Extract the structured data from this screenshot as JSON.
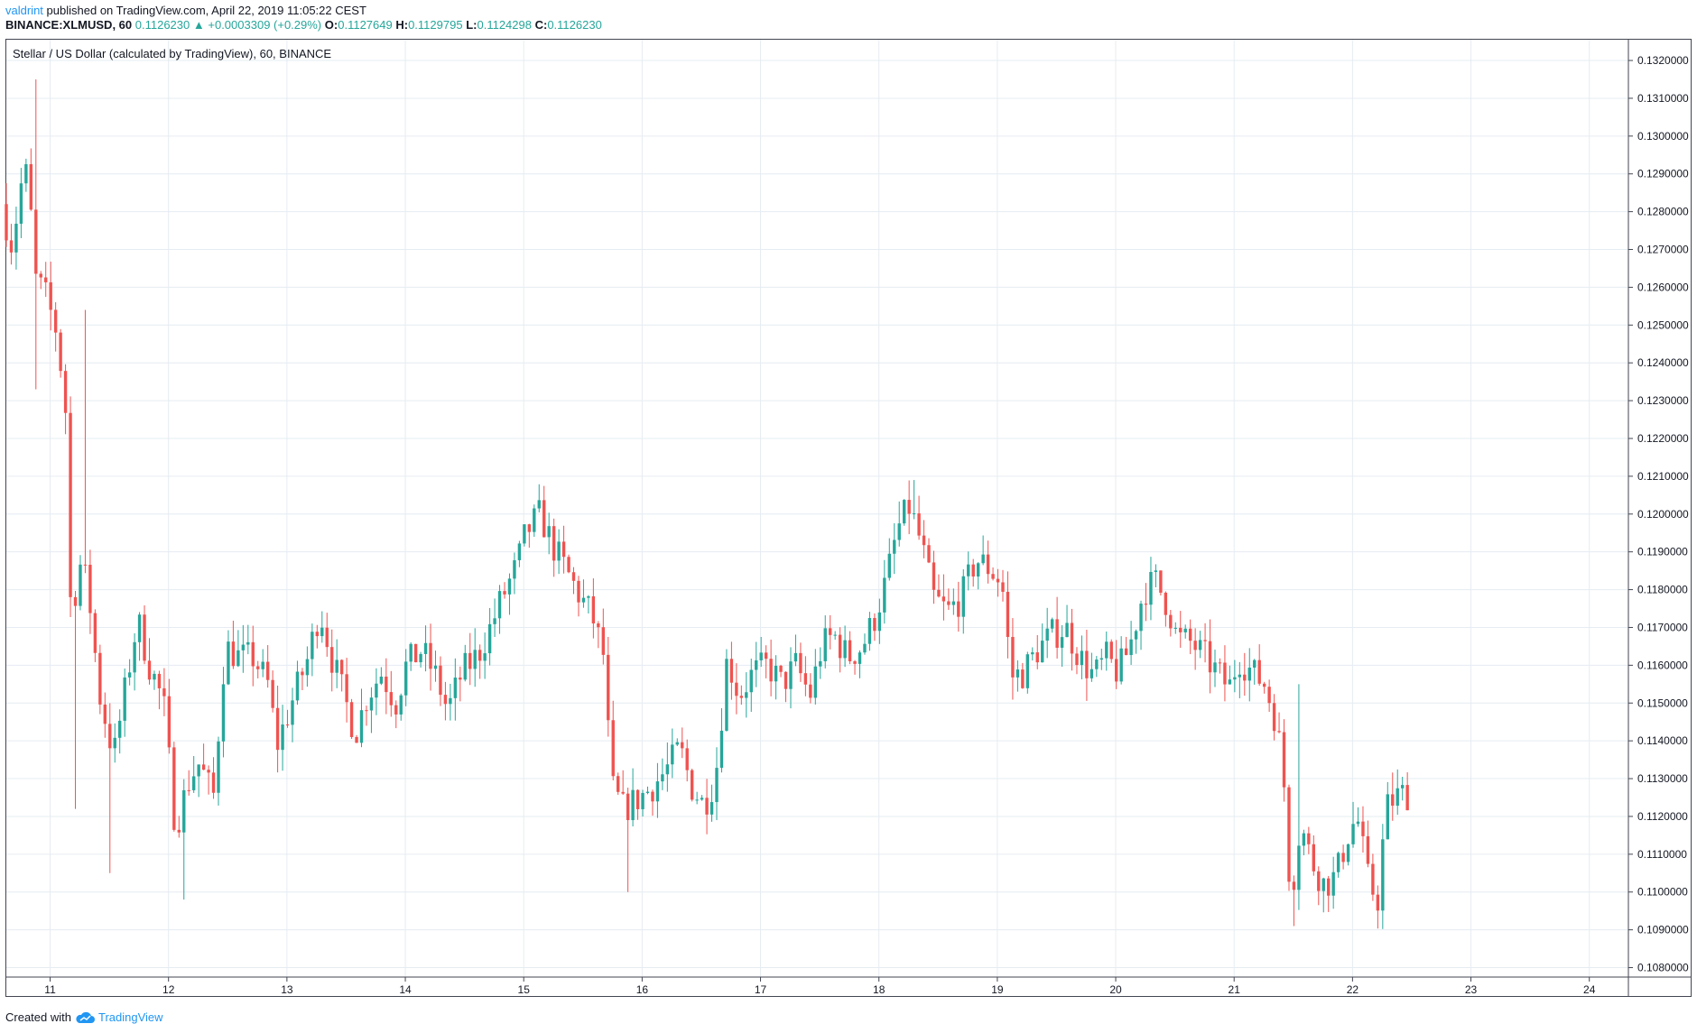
{
  "header": {
    "author": "valdrint",
    "published_text": "published on TradingView.com, April 22, 2019 11:05:22 CEST",
    "symbol_interval": "BINANCE:XLMUSD, 60",
    "last": "0.1126230",
    "change": "+0.0003309 (+0.29%)",
    "open_label": "O:",
    "open": "0.1127649",
    "high_label": "H:",
    "high": "0.1129795",
    "low_label": "L:",
    "low": "0.1124298",
    "close_label": "C:",
    "close": "0.1126230"
  },
  "footer": {
    "created_with": "Created with",
    "brand": "TradingView"
  },
  "colors": {
    "up": "#26a69a",
    "down": "#ef5350",
    "grid": "#e6ecf2",
    "axis_text": "#131722",
    "border": "#434651"
  },
  "chart_data": {
    "type": "candlestick",
    "title": "Stellar / US Dollar (calculated by TradingView), 60, BINANCE",
    "x_ticks": [
      "11",
      "12",
      "13",
      "14",
      "15",
      "16",
      "17",
      "18",
      "19",
      "20",
      "21",
      "22",
      "23",
      "24"
    ],
    "x_range_days": [
      10.63,
      24.33
    ],
    "y_range": [
      0.10775,
      0.13255
    ],
    "y_ticks": [
      0.108,
      0.109,
      0.11,
      0.111,
      0.112,
      0.113,
      0.114,
      0.115,
      0.116,
      0.117,
      0.118,
      0.119,
      0.12,
      0.121,
      0.122,
      0.123,
      0.124,
      0.125,
      0.126,
      0.127,
      0.128,
      0.129,
      0.13,
      0.131,
      0.132
    ],
    "y_tick_labels": [
      "0.1080000",
      "0.1090000",
      "0.1100000",
      "0.1110000",
      "0.1120000",
      "0.1130000",
      "0.1140000",
      "0.1150000",
      "0.1160000",
      "0.1170000",
      "0.1180000",
      "0.1190000",
      "0.1200000",
      "0.1210000",
      "0.1220000",
      "0.1230000",
      "0.1240000",
      "0.1250000",
      "0.1260000",
      "0.1270000",
      "0.1280000",
      "0.1290000",
      "0.1300000",
      "0.1310000",
      "0.1320000"
    ],
    "candle_interval_hours": 1,
    "path_key_points": [
      [
        10.63,
        0.1282
      ],
      [
        10.72,
        0.1271
      ],
      [
        10.82,
        0.1292
      ],
      [
        10.86,
        0.1287
      ],
      [
        10.92,
        0.1262
      ],
      [
        11.0,
        0.1258
      ],
      [
        11.1,
        0.1248
      ],
      [
        11.18,
        0.1225
      ],
      [
        11.22,
        0.1168
      ],
      [
        11.28,
        0.1188
      ],
      [
        11.36,
        0.1181
      ],
      [
        11.46,
        0.1152
      ],
      [
        11.58,
        0.1136
      ],
      [
        11.7,
        0.1158
      ],
      [
        11.78,
        0.1172
      ],
      [
        11.88,
        0.116
      ],
      [
        12.0,
        0.115
      ],
      [
        12.1,
        0.1117
      ],
      [
        12.22,
        0.113
      ],
      [
        12.3,
        0.1134
      ],
      [
        12.42,
        0.1125
      ],
      [
        12.52,
        0.1165
      ],
      [
        12.64,
        0.1162
      ],
      [
        12.76,
        0.1162
      ],
      [
        12.88,
        0.1155
      ],
      [
        12.96,
        0.1139
      ],
      [
        13.08,
        0.115
      ],
      [
        13.22,
        0.1162
      ],
      [
        13.32,
        0.1175
      ],
      [
        13.42,
        0.1162
      ],
      [
        13.54,
        0.115
      ],
      [
        13.62,
        0.1142
      ],
      [
        13.72,
        0.1152
      ],
      [
        13.84,
        0.1158
      ],
      [
        13.96,
        0.115
      ],
      [
        14.05,
        0.116
      ],
      [
        14.18,
        0.1164
      ],
      [
        14.3,
        0.1157
      ],
      [
        14.4,
        0.1148
      ],
      [
        14.52,
        0.1158
      ],
      [
        14.66,
        0.1163
      ],
      [
        14.76,
        0.117
      ],
      [
        14.86,
        0.1178
      ],
      [
        14.98,
        0.1186
      ],
      [
        15.06,
        0.1195
      ],
      [
        15.18,
        0.12
      ],
      [
        15.28,
        0.1192
      ],
      [
        15.4,
        0.1185
      ],
      [
        15.52,
        0.1178
      ],
      [
        15.62,
        0.1173
      ],
      [
        15.72,
        0.1162
      ],
      [
        15.78,
        0.1128
      ],
      [
        15.88,
        0.1122
      ],
      [
        15.98,
        0.1124
      ],
      [
        16.1,
        0.1127
      ],
      [
        16.24,
        0.1132
      ],
      [
        16.36,
        0.1138
      ],
      [
        16.46,
        0.1128
      ],
      [
        16.56,
        0.1123
      ],
      [
        16.66,
        0.113
      ],
      [
        16.76,
        0.1162
      ],
      [
        16.86,
        0.1152
      ],
      [
        16.98,
        0.1158
      ],
      [
        17.1,
        0.116
      ],
      [
        17.22,
        0.1155
      ],
      [
        17.34,
        0.116
      ],
      [
        17.46,
        0.1152
      ],
      [
        17.56,
        0.1165
      ],
      [
        17.66,
        0.1168
      ],
      [
        17.78,
        0.1162
      ],
      [
        17.9,
        0.1165
      ],
      [
        18.0,
        0.1172
      ],
      [
        18.1,
        0.1182
      ],
      [
        18.2,
        0.1196
      ],
      [
        18.3,
        0.1202
      ],
      [
        18.4,
        0.1192
      ],
      [
        18.5,
        0.1178
      ],
      [
        18.62,
        0.1174
      ],
      [
        18.74,
        0.1178
      ],
      [
        18.86,
        0.1188
      ],
      [
        18.96,
        0.1186
      ],
      [
        19.08,
        0.1182
      ],
      [
        19.16,
        0.1157
      ],
      [
        19.26,
        0.1158
      ],
      [
        19.38,
        0.1164
      ],
      [
        19.5,
        0.1168
      ],
      [
        19.62,
        0.117
      ],
      [
        19.74,
        0.1162
      ],
      [
        19.86,
        0.1157
      ],
      [
        19.96,
        0.1162
      ],
      [
        20.06,
        0.1158
      ],
      [
        20.16,
        0.1165
      ],
      [
        20.28,
        0.118
      ],
      [
        20.38,
        0.1182
      ],
      [
        20.48,
        0.1176
      ],
      [
        20.56,
        0.1167
      ],
      [
        20.68,
        0.1166
      ],
      [
        20.8,
        0.1162
      ],
      [
        20.9,
        0.1158
      ],
      [
        21.0,
        0.1154
      ],
      [
        21.08,
        0.1162
      ],
      [
        21.2,
        0.1158
      ],
      [
        21.3,
        0.1155
      ],
      [
        21.4,
        0.1145
      ],
      [
        21.46,
        0.113
      ],
      [
        21.52,
        0.1098
      ],
      [
        21.6,
        0.1118
      ],
      [
        21.7,
        0.1108
      ],
      [
        21.8,
        0.1102
      ],
      [
        21.9,
        0.1104
      ],
      [
        22.0,
        0.1115
      ],
      [
        22.08,
        0.112
      ],
      [
        22.18,
        0.1102
      ],
      [
        22.26,
        0.1098
      ],
      [
        22.32,
        0.1122
      ],
      [
        22.4,
        0.1125
      ],
      [
        22.47,
        0.1126
      ]
    ],
    "spikes": [
      {
        "day": 10.86,
        "high": 0.1315
      },
      {
        "day": 10.9,
        "low": 0.1233
      },
      {
        "day": 11.2,
        "low": 0.1122
      },
      {
        "day": 11.28,
        "high": 0.1254
      },
      {
        "day": 11.52,
        "low": 0.1105
      },
      {
        "day": 12.14,
        "low": 0.1098
      },
      {
        "day": 15.88,
        "low": 0.11
      },
      {
        "day": 18.28,
        "high": 0.1209
      },
      {
        "day": 21.55,
        "high": 0.1155
      },
      {
        "day": 21.52,
        "low": 0.1091
      }
    ]
  }
}
